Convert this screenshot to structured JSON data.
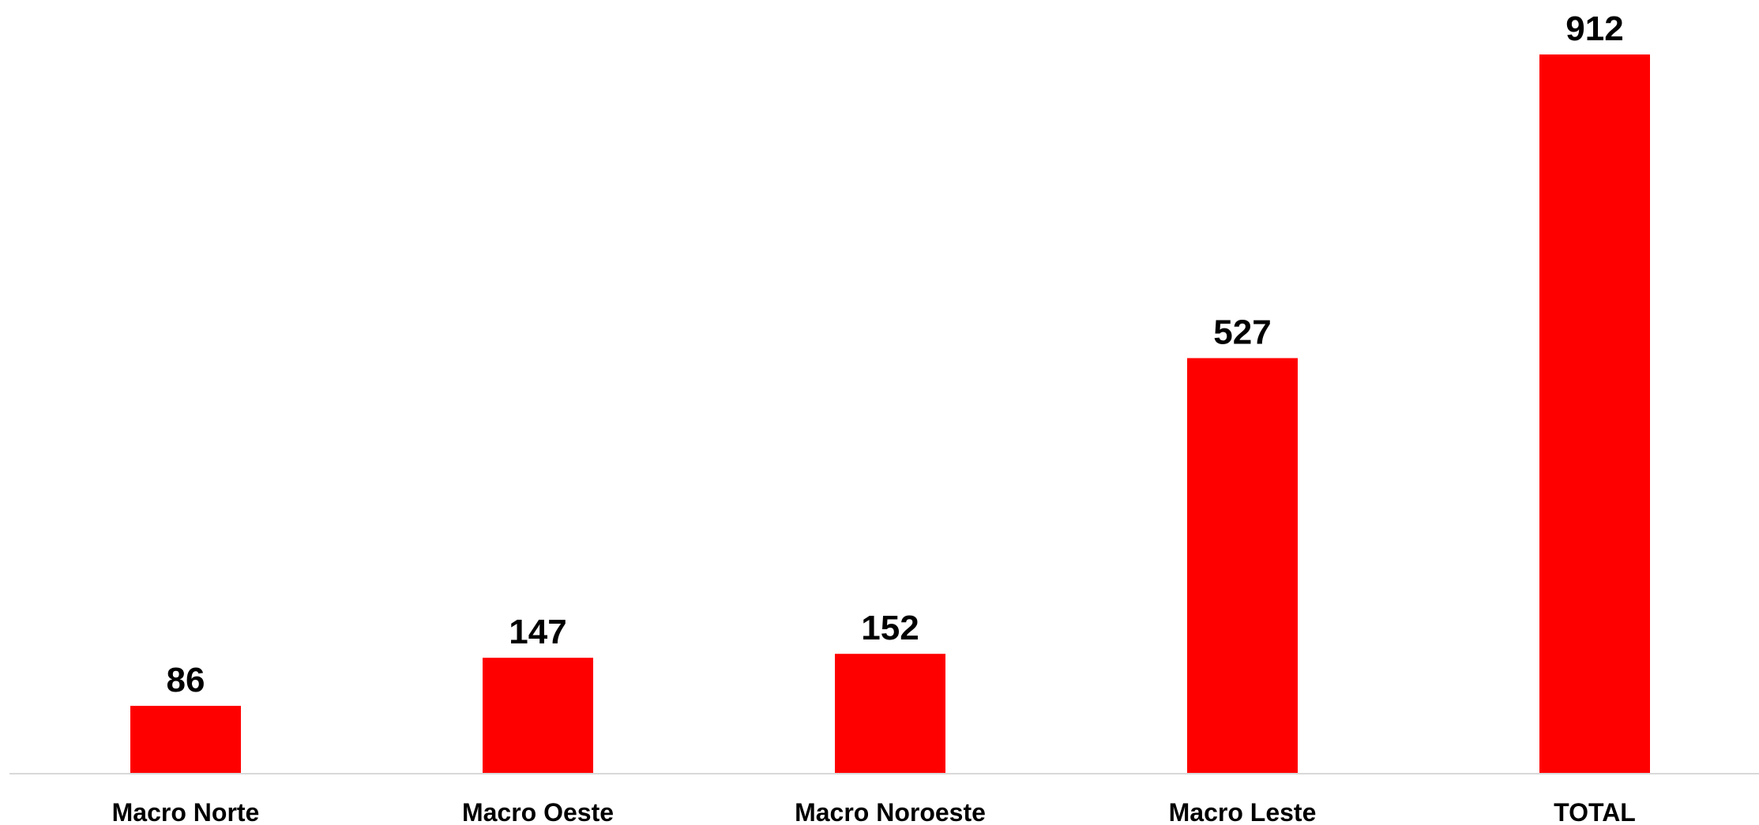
{
  "chart_data": {
    "type": "bar",
    "title": "",
    "xlabel": "",
    "ylabel": "",
    "categories": [
      "Macro Norte",
      "Macro Oeste",
      "Macro Noroeste",
      "Macro Leste",
      "TOTAL"
    ],
    "values": [
      86,
      147,
      152,
      527,
      912
    ],
    "data_labels": [
      "86",
      "147",
      "152",
      "527",
      "912"
    ],
    "ylim": [
      0,
      912
    ],
    "bar_color": "#ff0000",
    "axis_color": "#d9d9d9",
    "grid": false,
    "legend": "none",
    "y_axis_visible": false
  }
}
